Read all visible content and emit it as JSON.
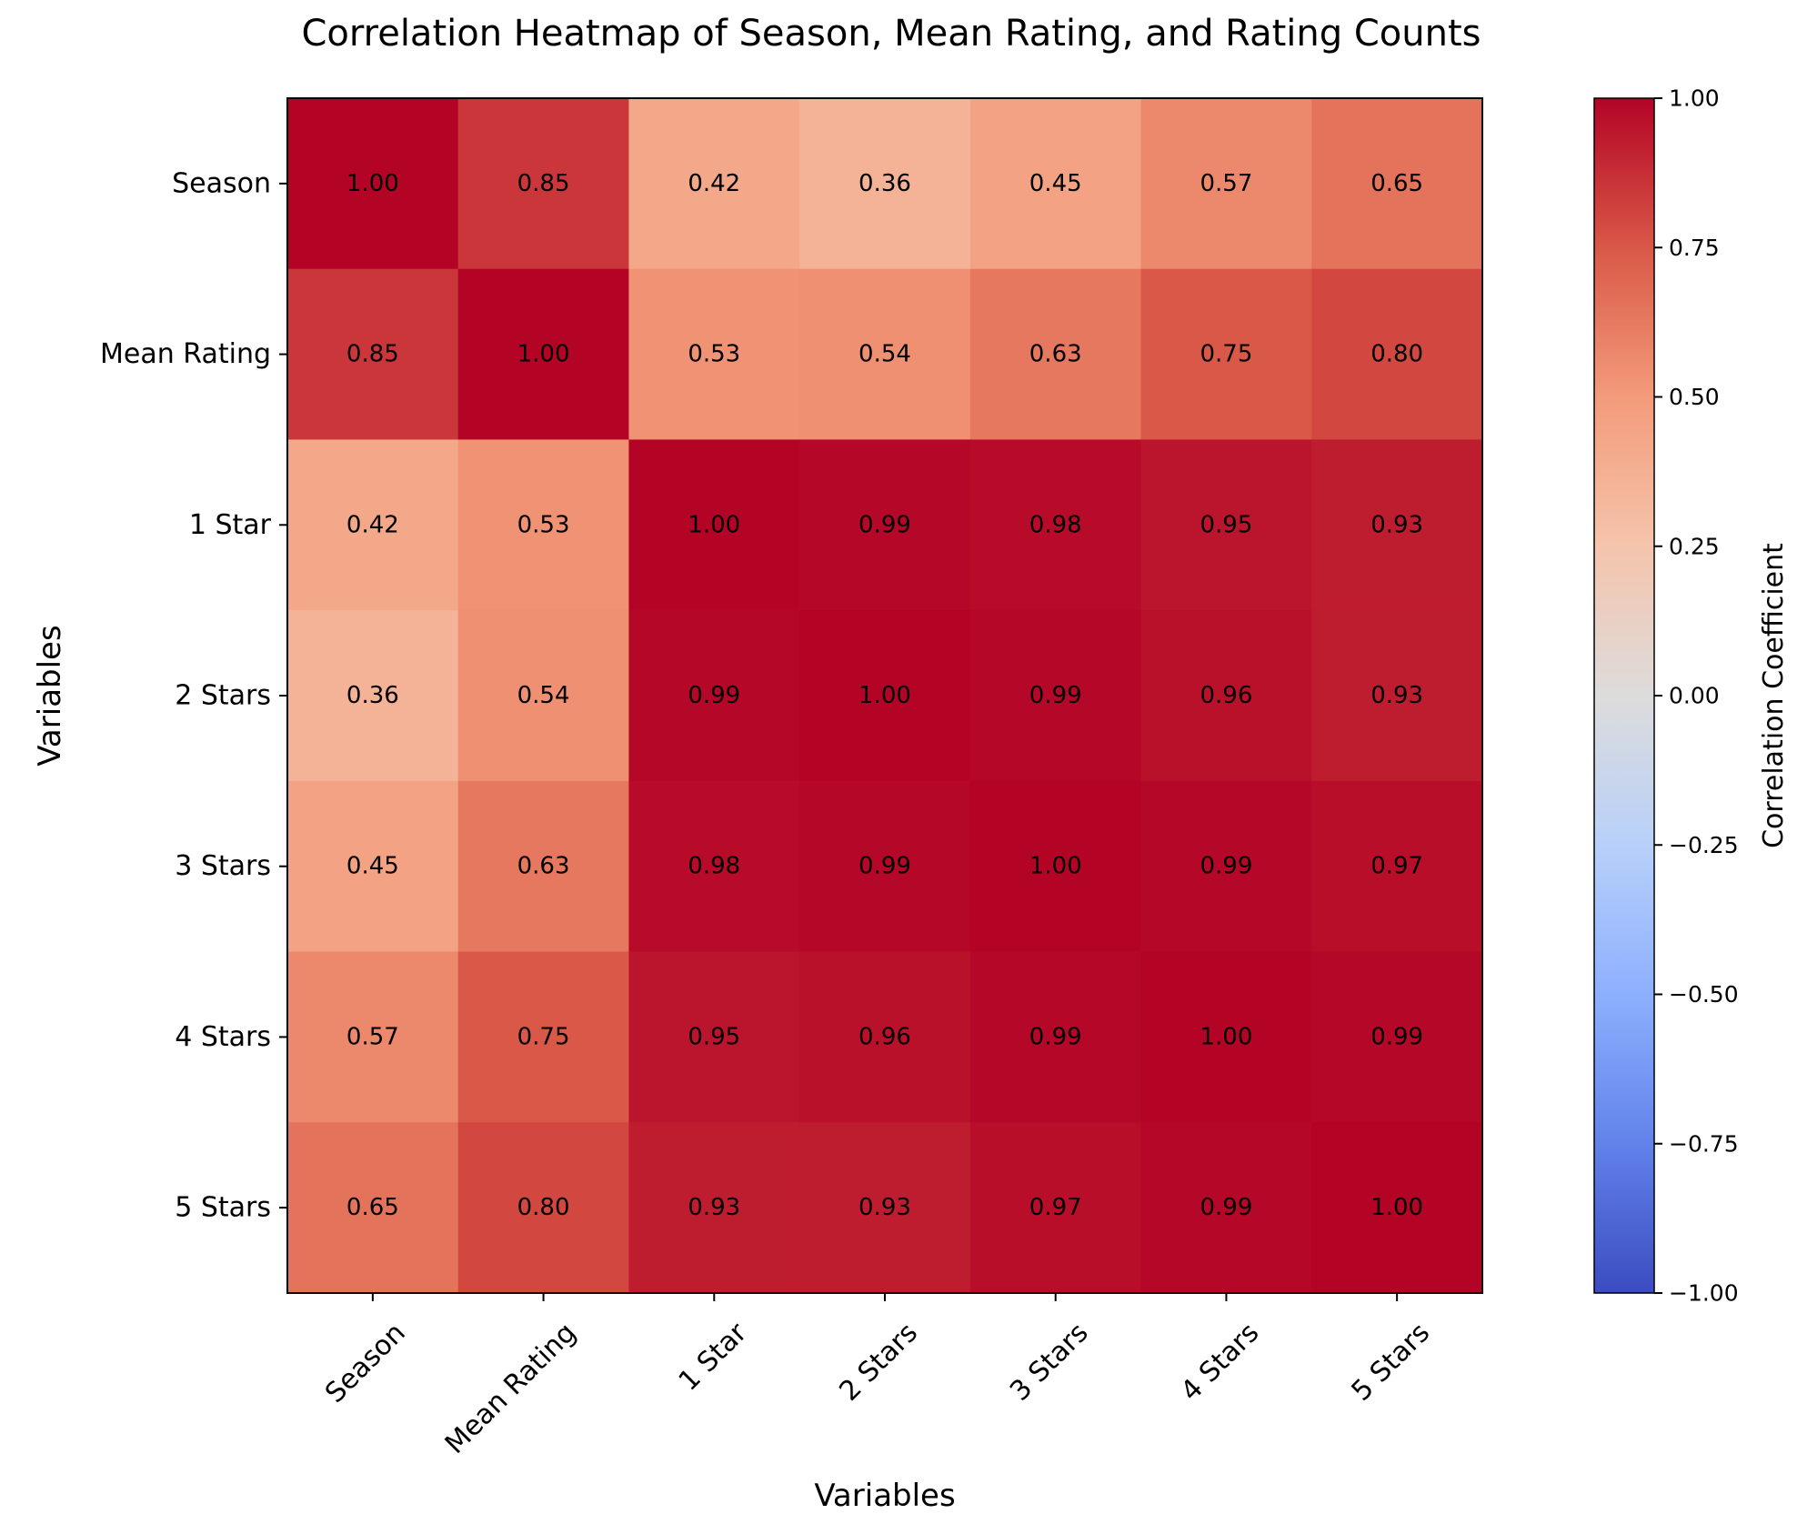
{
  "chart_data": {
    "type": "heatmap",
    "title": "Correlation Heatmap of Season, Mean Rating, and Rating Counts",
    "xlabel": "Variables",
    "ylabel": "Variables",
    "categories": [
      "Season",
      "Mean Rating",
      "1 Star",
      "2 Stars",
      "3 Stars",
      "4 Stars",
      "5 Stars"
    ],
    "matrix": [
      [
        1.0,
        0.85,
        0.42,
        0.36,
        0.45,
        0.57,
        0.65
      ],
      [
        0.85,
        1.0,
        0.53,
        0.54,
        0.63,
        0.75,
        0.8
      ],
      [
        0.42,
        0.53,
        1.0,
        0.99,
        0.98,
        0.95,
        0.93
      ],
      [
        0.36,
        0.54,
        0.99,
        1.0,
        0.99,
        0.96,
        0.93
      ],
      [
        0.45,
        0.63,
        0.98,
        0.99,
        1.0,
        0.99,
        0.97
      ],
      [
        0.57,
        0.75,
        0.95,
        0.96,
        0.99,
        1.0,
        0.99
      ],
      [
        0.65,
        0.8,
        0.93,
        0.93,
        0.97,
        0.99,
        1.0
      ]
    ],
    "value_format_decimals": 2,
    "colormap": "coolwarm",
    "colorbar": {
      "label": "Correlation Coefficient",
      "range": [
        -1,
        1
      ],
      "ticks": [
        -1.0,
        -0.75,
        -0.5,
        -0.25,
        0.0,
        0.25,
        0.5,
        0.75,
        1.0
      ],
      "tick_labels": [
        "−1.00",
        "−0.75",
        "−0.50",
        "−0.25",
        "0.00",
        "0.25",
        "0.50",
        "0.75",
        "1.00"
      ]
    },
    "grid": false,
    "x_tick_rotation_deg": 45
  }
}
